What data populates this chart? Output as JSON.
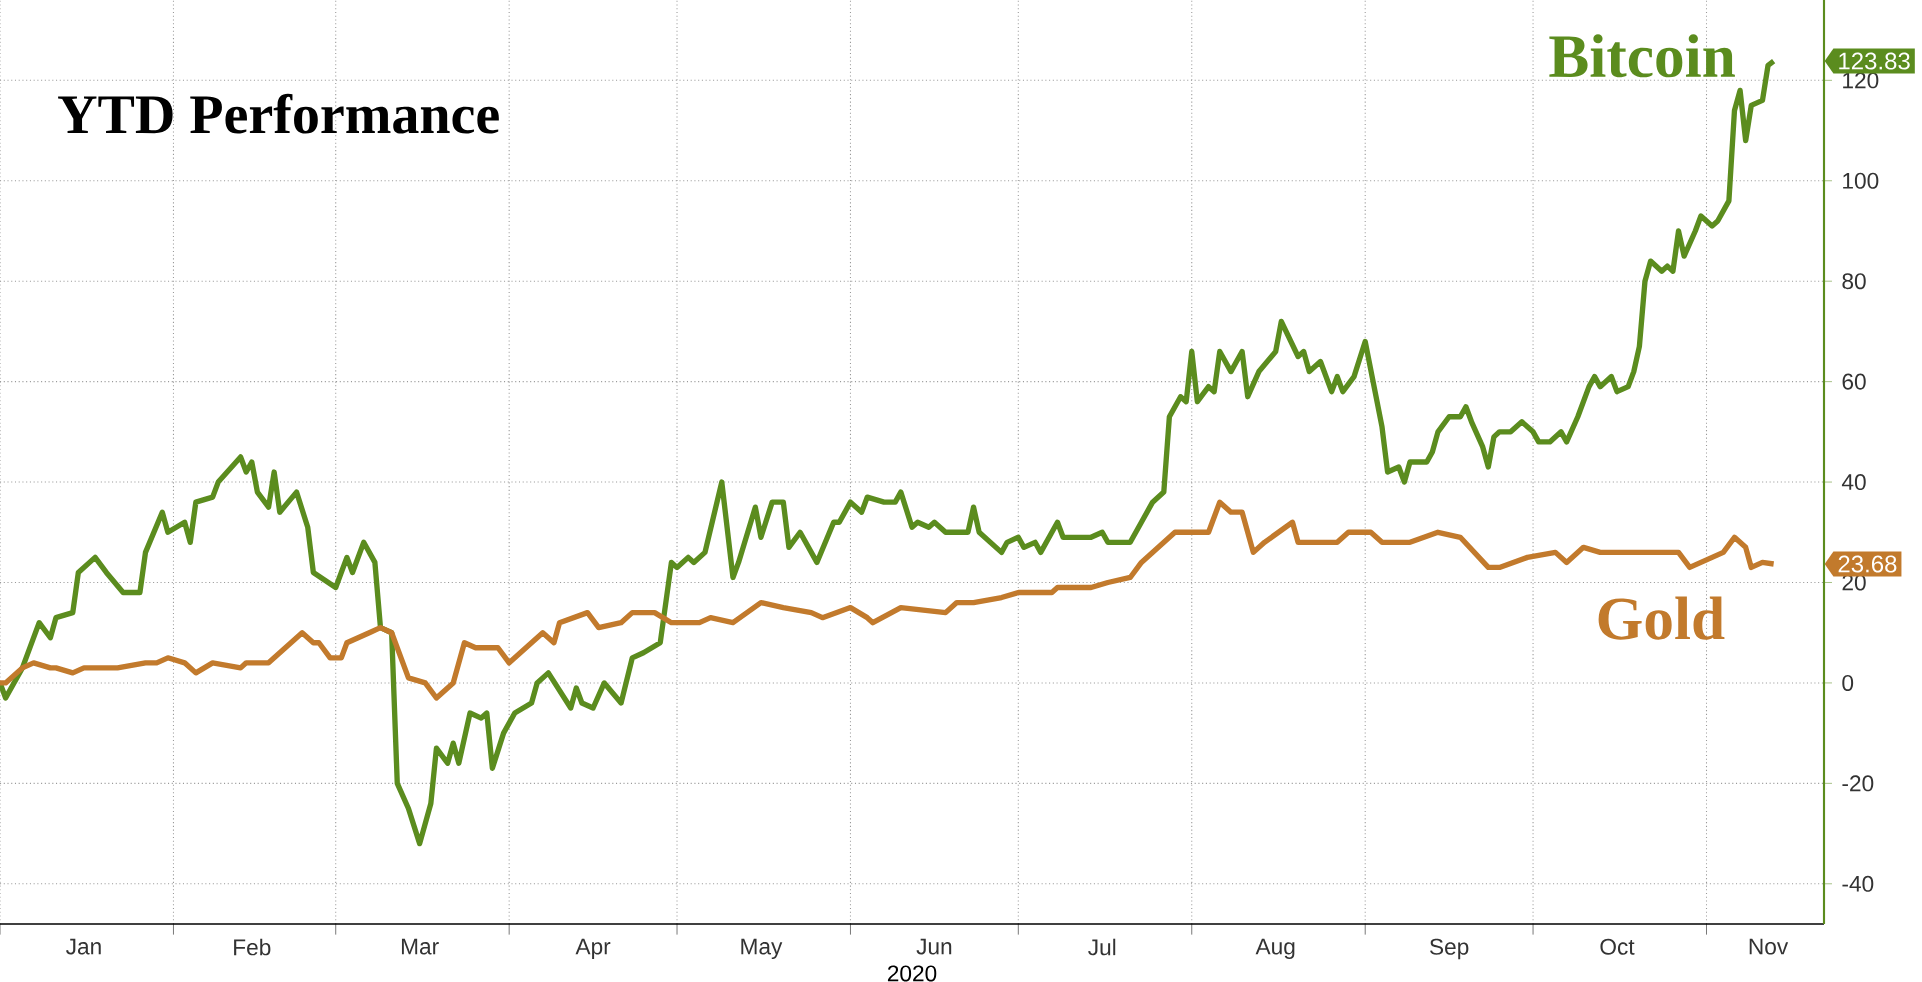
{
  "chart_data": {
    "type": "line",
    "title": "YTD Performance",
    "xlabel": "2020",
    "grid": true,
    "xlim": [
      "2020-01-01",
      "2020-11-22"
    ],
    "ylim": [
      -48,
      136
    ],
    "xticks": [
      {
        "value": "2020-01-01",
        "label": null
      },
      {
        "value": "2020-01-16",
        "label": "Jan"
      },
      {
        "value": "2020-02-01",
        "label": null
      },
      {
        "value": "2020-02-15",
        "label": "Feb"
      },
      {
        "value": "2020-03-01",
        "label": null
      },
      {
        "value": "2020-03-16",
        "label": "Mar"
      },
      {
        "value": "2020-04-01",
        "label": null
      },
      {
        "value": "2020-04-16",
        "label": "Apr"
      },
      {
        "value": "2020-05-01",
        "label": null
      },
      {
        "value": "2020-05-16",
        "label": "May"
      },
      {
        "value": "2020-06-01",
        "label": null
      },
      {
        "value": "2020-06-16",
        "label": "Jun"
      },
      {
        "value": "2020-07-01",
        "label": null
      },
      {
        "value": "2020-07-16",
        "label": "Jul"
      },
      {
        "value": "2020-08-01",
        "label": null
      },
      {
        "value": "2020-08-16",
        "label": "Aug"
      },
      {
        "value": "2020-09-01",
        "label": null
      },
      {
        "value": "2020-09-16",
        "label": "Sep"
      },
      {
        "value": "2020-10-01",
        "label": null
      },
      {
        "value": "2020-10-16",
        "label": "Oct"
      },
      {
        "value": "2020-11-01",
        "label": null
      },
      {
        "value": "2020-11-12",
        "label": "Nov"
      }
    ],
    "yticks": [
      -40,
      -20,
      0,
      20,
      40,
      60,
      80,
      100,
      120
    ],
    "series": [
      {
        "name": "Bitcoin",
        "color": "#5b8c1e",
        "x": [
          "2020-01-01",
          "2020-01-02",
          "2020-01-05",
          "2020-01-08",
          "2020-01-10",
          "2020-01-11",
          "2020-01-14",
          "2020-01-15",
          "2020-01-18",
          "2020-01-20",
          "2020-01-23",
          "2020-01-26",
          "2020-01-27",
          "2020-01-30",
          "2020-01-31",
          "2020-02-03",
          "2020-02-04",
          "2020-02-05",
          "2020-02-08",
          "2020-02-09",
          "2020-02-13",
          "2020-02-14",
          "2020-02-15",
          "2020-02-16",
          "2020-02-18",
          "2020-02-19",
          "2020-02-20",
          "2020-02-23",
          "2020-02-25",
          "2020-02-26",
          "2020-03-01",
          "2020-03-03",
          "2020-03-04",
          "2020-03-06",
          "2020-03-08",
          "2020-03-09",
          "2020-03-11",
          "2020-03-12",
          "2020-03-14",
          "2020-03-16",
          "2020-03-18",
          "2020-03-19",
          "2020-03-21",
          "2020-03-22",
          "2020-03-23",
          "2020-03-25",
          "2020-03-27",
          "2020-03-28",
          "2020-03-29",
          "2020-03-31",
          "2020-04-02",
          "2020-04-05",
          "2020-04-06",
          "2020-04-08",
          "2020-04-12",
          "2020-04-13",
          "2020-04-14",
          "2020-04-16",
          "2020-04-18",
          "2020-04-21",
          "2020-04-23",
          "2020-04-25",
          "2020-04-28",
          "2020-04-30",
          "2020-05-01",
          "2020-05-03",
          "2020-05-04",
          "2020-05-06",
          "2020-05-09",
          "2020-05-11",
          "2020-05-12",
          "2020-05-15",
          "2020-05-16",
          "2020-05-18",
          "2020-05-20",
          "2020-05-21",
          "2020-05-23",
          "2020-05-26",
          "2020-05-29",
          "2020-05-30",
          "2020-06-01",
          "2020-06-03",
          "2020-06-04",
          "2020-06-07",
          "2020-06-09",
          "2020-06-10",
          "2020-06-12",
          "2020-06-13",
          "2020-06-15",
          "2020-06-16",
          "2020-06-18",
          "2020-06-22",
          "2020-06-23",
          "2020-06-24",
          "2020-06-28",
          "2020-06-29",
          "2020-07-01",
          "2020-07-02",
          "2020-07-04",
          "2020-07-05",
          "2020-07-07",
          "2020-07-08",
          "2020-07-09",
          "2020-07-14",
          "2020-07-16",
          "2020-07-17",
          "2020-07-21",
          "2020-07-23",
          "2020-07-25",
          "2020-07-27",
          "2020-07-28",
          "2020-07-30",
          "2020-07-31",
          "2020-08-01",
          "2020-08-02",
          "2020-08-04",
          "2020-08-05",
          "2020-08-06",
          "2020-08-08",
          "2020-08-09",
          "2020-08-10",
          "2020-08-11",
          "2020-08-13",
          "2020-08-16",
          "2020-08-17",
          "2020-08-20",
          "2020-08-21",
          "2020-08-22",
          "2020-08-24",
          "2020-08-26",
          "2020-08-27",
          "2020-08-28",
          "2020-08-30",
          "2020-09-01",
          "2020-09-04",
          "2020-09-05",
          "2020-09-07",
          "2020-09-08",
          "2020-09-09",
          "2020-09-12",
          "2020-09-13",
          "2020-09-14",
          "2020-09-16",
          "2020-09-18",
          "2020-09-19",
          "2020-09-20",
          "2020-09-22",
          "2020-09-23",
          "2020-09-24",
          "2020-09-25",
          "2020-09-27",
          "2020-09-29",
          "2020-10-01",
          "2020-10-02",
          "2020-10-04",
          "2020-10-06",
          "2020-10-07",
          "2020-10-09",
          "2020-10-11",
          "2020-10-12",
          "2020-10-13",
          "2020-10-15",
          "2020-10-16",
          "2020-10-18",
          "2020-10-19",
          "2020-10-20",
          "2020-10-21",
          "2020-10-22",
          "2020-10-24",
          "2020-10-25",
          "2020-10-26",
          "2020-10-27",
          "2020-10-28",
          "2020-10-30",
          "2020-10-31",
          "2020-11-02",
          "2020-11-03",
          "2020-11-05",
          "2020-11-06",
          "2020-11-07",
          "2020-11-08",
          "2020-11-09",
          "2020-11-11",
          "2020-11-12",
          "2020-11-13"
        ],
        "values": [
          0,
          -3,
          3,
          12,
          9,
          13,
          14,
          22,
          25,
          22,
          18,
          18,
          26,
          34,
          30,
          32,
          28,
          36,
          37,
          40,
          45,
          42,
          44,
          38,
          35,
          42,
          34,
          38,
          31,
          22,
          19,
          25,
          22,
          28,
          24,
          11,
          10,
          -20,
          -25,
          -32,
          -24,
          -13,
          -16,
          -12,
          -16,
          -6,
          -7,
          -6,
          -17,
          -10,
          -6,
          -4,
          0,
          2,
          -5,
          -1,
          -4,
          -5,
          0,
          -4,
          5,
          6,
          8,
          24,
          23,
          25,
          24,
          26,
          40,
          21,
          24,
          35,
          29,
          36,
          36,
          27,
          30,
          24,
          32,
          32,
          36,
          34,
          37,
          36,
          36,
          38,
          31,
          32,
          31,
          32,
          30,
          30,
          35,
          30,
          26,
          28,
          29,
          27,
          28,
          26,
          30,
          32,
          29,
          29,
          30,
          28,
          28,
          32,
          36,
          38,
          53,
          57,
          56,
          66,
          56,
          59,
          58,
          66,
          62,
          64,
          66,
          57,
          62,
          66,
          72,
          65,
          66,
          62,
          64,
          58,
          61,
          58,
          61,
          68,
          51,
          42,
          43,
          40,
          44,
          44,
          46,
          50,
          53,
          53,
          55,
          52,
          47,
          43,
          49,
          50,
          50,
          52,
          50,
          48,
          48,
          50,
          48,
          53,
          59,
          61,
          59,
          61,
          58,
          59,
          62,
          67,
          80,
          84,
          82,
          83,
          82,
          90,
          85,
          90,
          93,
          91,
          92,
          96,
          114,
          118,
          108,
          115,
          116,
          123,
          123.83
        ]
      },
      {
        "name": "Gold",
        "color": "#c27a2c",
        "x": [
          "2020-01-01",
          "2020-01-02",
          "2020-01-05",
          "2020-01-07",
          "2020-01-10",
          "2020-01-11",
          "2020-01-14",
          "2020-01-16",
          "2020-01-22",
          "2020-01-27",
          "2020-01-29",
          "2020-01-31",
          "2020-02-03",
          "2020-02-05",
          "2020-02-08",
          "2020-02-13",
          "2020-02-14",
          "2020-02-18",
          "2020-02-22",
          "2020-02-24",
          "2020-02-26",
          "2020-02-27",
          "2020-02-29",
          "2020-03-02",
          "2020-03-03",
          "2020-03-05",
          "2020-03-07",
          "2020-03-09",
          "2020-03-11",
          "2020-03-14",
          "2020-03-17",
          "2020-03-19",
          "2020-03-22",
          "2020-03-24",
          "2020-03-26",
          "2020-03-30",
          "2020-04-01",
          "2020-04-03",
          "2020-04-05",
          "2020-04-07",
          "2020-04-09",
          "2020-04-10",
          "2020-04-15",
          "2020-04-17",
          "2020-04-21",
          "2020-04-23",
          "2020-04-27",
          "2020-04-30",
          "2020-05-01",
          "2020-05-05",
          "2020-05-07",
          "2020-05-11",
          "2020-05-16",
          "2020-05-20",
          "2020-05-25",
          "2020-05-27",
          "2020-06-01",
          "2020-06-04",
          "2020-06-05",
          "2020-06-10",
          "2020-06-18",
          "2020-06-20",
          "2020-06-23",
          "2020-06-28",
          "2020-07-01",
          "2020-07-07",
          "2020-07-08",
          "2020-07-14",
          "2020-07-17",
          "2020-07-21",
          "2020-07-23",
          "2020-07-29",
          "2020-07-31",
          "2020-08-04",
          "2020-08-06",
          "2020-08-08",
          "2020-08-10",
          "2020-08-12",
          "2020-08-14",
          "2020-08-19",
          "2020-08-20",
          "2020-08-27",
          "2020-08-29",
          "2020-09-02",
          "2020-09-04",
          "2020-09-09",
          "2020-09-14",
          "2020-09-18",
          "2020-09-23",
          "2020-09-25",
          "2020-09-30",
          "2020-10-05",
          "2020-10-07",
          "2020-10-10",
          "2020-10-13",
          "2020-10-21",
          "2020-10-27",
          "2020-10-29",
          "2020-11-04",
          "2020-11-06",
          "2020-11-08",
          "2020-11-09",
          "2020-11-11",
          "2020-11-13"
        ],
        "values": [
          0,
          0,
          3,
          4,
          3,
          3,
          2,
          3,
          3,
          4,
          4,
          5,
          4,
          2,
          4,
          3,
          4,
          4,
          8,
          10,
          8,
          8,
          5,
          5,
          8,
          9,
          10,
          11,
          10,
          1,
          0,
          -3,
          0,
          8,
          7,
          7,
          4,
          6,
          8,
          10,
          8,
          12,
          14,
          11,
          12,
          14,
          14,
          12,
          12,
          12,
          13,
          12,
          16,
          15,
          14,
          13,
          15,
          13,
          12,
          15,
          14,
          16,
          16,
          17,
          18,
          18,
          19,
          19,
          20,
          21,
          24,
          30,
          30,
          30,
          36,
          34,
          34,
          26,
          28,
          32,
          28,
          28,
          30,
          30,
          28,
          28,
          30,
          29,
          23,
          23,
          25,
          26,
          24,
          27,
          26,
          26,
          26,
          23,
          26,
          29,
          27,
          23,
          24,
          23.68
        ]
      }
    ],
    "annotations": [
      "123.83",
      "23.68"
    ]
  }
}
